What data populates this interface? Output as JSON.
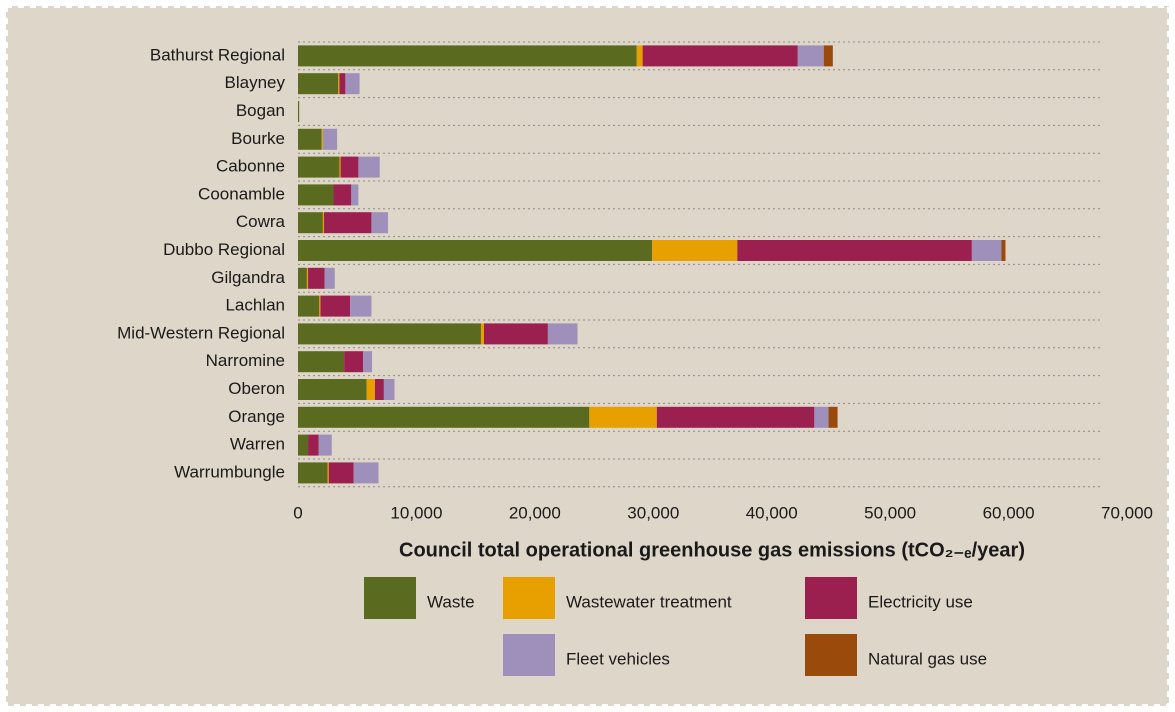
{
  "chart_data": {
    "type": "stacked-bar-horizontal",
    "xlabel": "Council total operational greenhouse gas emissions (tCO₂₋ₑ/year)",
    "categories": [
      "Bathurst Regional",
      "Blayney",
      "Bogan",
      "Bourke",
      "Cabonne",
      "Coonamble",
      "Cowra",
      "Dubbo Regional",
      "Gilgandra",
      "Lachlan",
      "Mid-Western Regional",
      "Narromine",
      "Oberon",
      "Orange",
      "Warren",
      "Warrumbungle"
    ],
    "series": [
      {
        "name": "Waste",
        "color": "#5a6a1e",
        "values": [
          28600,
          3400,
          100,
          2000,
          3500,
          3000,
          2100,
          29900,
          750,
          1800,
          15450,
          3900,
          5800,
          24600,
          850,
          2500
        ]
      },
      {
        "name": "Wastewater treatment",
        "color": "#e8a000",
        "values": [
          500,
          100,
          0,
          100,
          100,
          0,
          100,
          7200,
          100,
          100,
          250,
          0,
          700,
          5700,
          0,
          100
        ]
      },
      {
        "name": "Electricity use",
        "color": "#9b1f4f",
        "values": [
          13100,
          500,
          0,
          0,
          1500,
          1500,
          4000,
          19800,
          1400,
          2500,
          5400,
          1600,
          750,
          13300,
          900,
          2100
        ]
      },
      {
        "name": "Fleet vehicles",
        "color": "#9f8fbb",
        "values": [
          2200,
          1200,
          0,
          1200,
          1800,
          600,
          1400,
          2500,
          850,
          1800,
          2500,
          750,
          900,
          1200,
          1100,
          2100
        ]
      },
      {
        "name": "Natural gas use",
        "color": "#9a4a0a",
        "values": [
          760,
          0,
          0,
          0,
          0,
          0,
          0,
          340,
          0,
          0,
          0,
          0,
          0,
          760,
          0,
          0
        ]
      }
    ],
    "xlim": [
      0,
      70000
    ],
    "xticks": [
      0,
      {
        "value": 10000,
        "label": "10,000"
      },
      {
        "value": 20000,
        "label": "20,000"
      },
      {
        "value": 30000,
        "label": "30,000"
      },
      {
        "value": 40000,
        "label": "40,000"
      },
      {
        "value": 50000,
        "label": "50,000"
      },
      {
        "value": 60000,
        "label": "60,000"
      },
      {
        "value": 70000,
        "label": "70,000"
      }
    ],
    "grid": true
  }
}
